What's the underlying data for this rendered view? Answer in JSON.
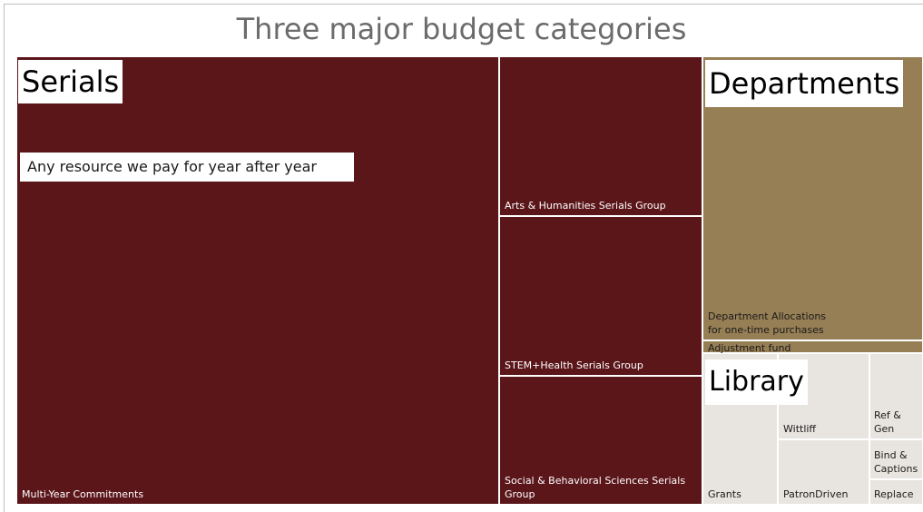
{
  "title": "Three major budget categories",
  "groups": [
    {
      "name": "Serials",
      "color": "#5b161a",
      "label_color": "#ffffff"
    },
    {
      "name": "Departments",
      "color": "#967e55",
      "label_color": "#1a1a1a"
    },
    {
      "name": "Library",
      "color": "#e8e5e0",
      "label_color": "#1a1a1a"
    }
  ],
  "annotation": "Any resource we pay for year after year",
  "chart_data": {
    "type": "treemap",
    "title": "Three major budget categories",
    "nodes": [
      {
        "group": "Serials",
        "label": "Multi-Year Commitments"
      },
      {
        "group": "Serials",
        "label": "Arts & Humanities Serials Group"
      },
      {
        "group": "Serials",
        "label": "STEM+Health Serials Group"
      },
      {
        "group": "Serials",
        "label": "Social & Behavioral Sciences Serials Group"
      },
      {
        "group": "Departments",
        "label": "Department Allocations\nfor one-time purchases"
      },
      {
        "group": "Departments",
        "label": "Adjustment fund"
      },
      {
        "group": "Library",
        "label": "Grants"
      },
      {
        "group": "Library",
        "label": "Wittliff"
      },
      {
        "group": "Library",
        "label": "PatronDriven"
      },
      {
        "group": "Library",
        "label": "Ref & Gen"
      },
      {
        "group": "Library",
        "label": "Bind & Captions"
      },
      {
        "group": "Library",
        "label": "Replace"
      }
    ]
  }
}
